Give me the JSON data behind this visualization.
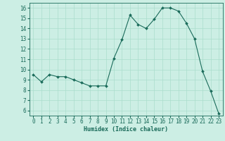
{
  "x": [
    0,
    1,
    2,
    3,
    4,
    5,
    6,
    7,
    8,
    9,
    10,
    11,
    12,
    13,
    14,
    15,
    16,
    17,
    18,
    19,
    20,
    21,
    22,
    23
  ],
  "y": [
    9.5,
    8.8,
    9.5,
    9.3,
    9.3,
    9.0,
    8.7,
    8.4,
    8.4,
    8.4,
    11.1,
    12.9,
    15.3,
    14.4,
    14.0,
    14.9,
    16.0,
    16.0,
    15.7,
    14.5,
    13.0,
    9.8,
    7.9,
    5.7
  ],
  "line_color": "#1a6b5a",
  "marker": "D",
  "marker_size": 2.0,
  "bg_color": "#cceee4",
  "grid_color": "#aaddcc",
  "xlabel": "Humidex (Indice chaleur)",
  "xlim": [
    -0.5,
    23.5
  ],
  "ylim": [
    5.5,
    16.5
  ],
  "yticks": [
    6,
    7,
    8,
    9,
    10,
    11,
    12,
    13,
    14,
    15,
    16
  ],
  "xticks": [
    0,
    1,
    2,
    3,
    4,
    5,
    6,
    7,
    8,
    9,
    10,
    11,
    12,
    13,
    14,
    15,
    16,
    17,
    18,
    19,
    20,
    21,
    22,
    23
  ],
  "xlabel_fontsize": 6.0,
  "tick_fontsize": 5.5
}
